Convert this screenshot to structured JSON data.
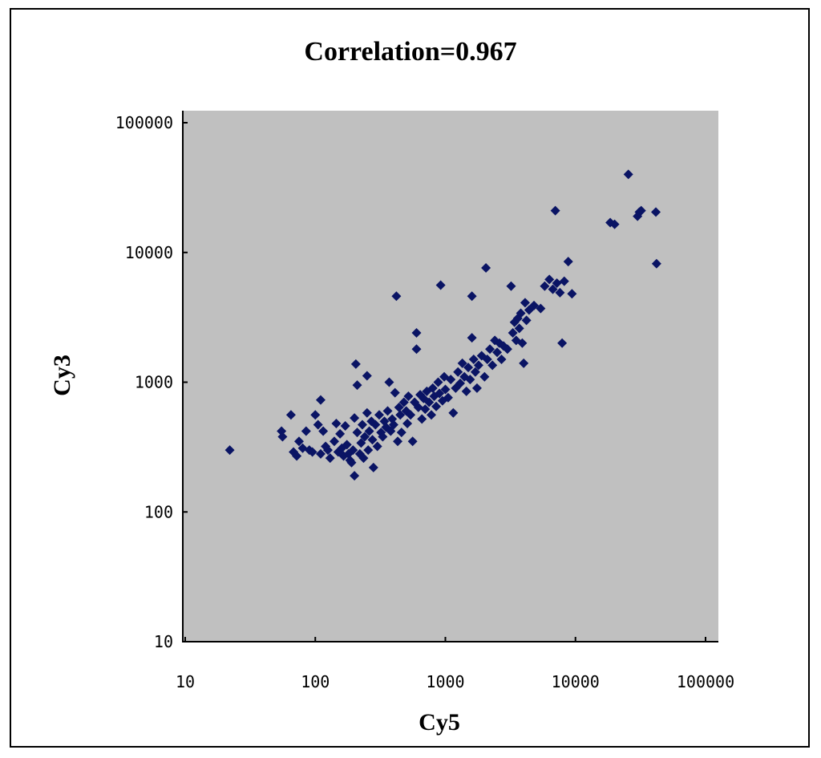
{
  "chart_data": {
    "type": "scatter",
    "title": "Correlation=0.967",
    "xlabel": "Cy5",
    "ylabel": "Cy3",
    "xscale": "log",
    "yscale": "log",
    "xlim": [
      10,
      100000
    ],
    "ylim": [
      10,
      100000
    ],
    "xticks": [
      "10",
      "100",
      "1000",
      "10000",
      "100000"
    ],
    "yticks": [
      "10",
      "100",
      "1000",
      "10000",
      "100000"
    ],
    "grid": false,
    "legend": "none",
    "colors": {
      "marker": "#0a1464",
      "plot_background": "#c0c0c0",
      "frame": "#000000"
    },
    "marker": "diamond",
    "points": [
      [
        22,
        300
      ],
      [
        55,
        420
      ],
      [
        56,
        380
      ],
      [
        65,
        560
      ],
      [
        68,
        290
      ],
      [
        72,
        270
      ],
      [
        75,
        350
      ],
      [
        80,
        310
      ],
      [
        85,
        420
      ],
      [
        90,
        300
      ],
      [
        95,
        290
      ],
      [
        100,
        560
      ],
      [
        105,
        470
      ],
      [
        110,
        730
      ],
      [
        110,
        280
      ],
      [
        115,
        420
      ],
      [
        120,
        320
      ],
      [
        125,
        300
      ],
      [
        130,
        260
      ],
      [
        140,
        350
      ],
      [
        145,
        480
      ],
      [
        150,
        290
      ],
      [
        155,
        400
      ],
      [
        160,
        310
      ],
      [
        165,
        270
      ],
      [
        170,
        460
      ],
      [
        175,
        330
      ],
      [
        180,
        280
      ],
      [
        185,
        250
      ],
      [
        190,
        240
      ],
      [
        195,
        300
      ],
      [
        200,
        530
      ],
      [
        200,
        190
      ],
      [
        205,
        1380
      ],
      [
        210,
        950
      ],
      [
        210,
        410
      ],
      [
        220,
        280
      ],
      [
        225,
        340
      ],
      [
        230,
        470
      ],
      [
        235,
        260
      ],
      [
        240,
        380
      ],
      [
        250,
        1120
      ],
      [
        250,
        580
      ],
      [
        255,
        300
      ],
      [
        260,
        420
      ],
      [
        270,
        500
      ],
      [
        275,
        360
      ],
      [
        280,
        220
      ],
      [
        290,
        470
      ],
      [
        300,
        320
      ],
      [
        310,
        560
      ],
      [
        320,
        410
      ],
      [
        330,
        380
      ],
      [
        340,
        500
      ],
      [
        350,
        450
      ],
      [
        360,
        600
      ],
      [
        370,
        1000
      ],
      [
        380,
        420
      ],
      [
        390,
        520
      ],
      [
        400,
        470
      ],
      [
        410,
        830
      ],
      [
        420,
        4600
      ],
      [
        430,
        350
      ],
      [
        440,
        640
      ],
      [
        450,
        560
      ],
      [
        460,
        410
      ],
      [
        480,
        700
      ],
      [
        500,
        600
      ],
      [
        510,
        480
      ],
      [
        520,
        780
      ],
      [
        540,
        560
      ],
      [
        560,
        350
      ],
      [
        580,
        700
      ],
      [
        600,
        2400
      ],
      [
        600,
        1800
      ],
      [
        620,
        640
      ],
      [
        640,
        800
      ],
      [
        660,
        520
      ],
      [
        680,
        750
      ],
      [
        700,
        620
      ],
      [
        720,
        850
      ],
      [
        750,
        700
      ],
      [
        780,
        560
      ],
      [
        800,
        900
      ],
      [
        820,
        780
      ],
      [
        850,
        650
      ],
      [
        880,
        1000
      ],
      [
        900,
        820
      ],
      [
        920,
        5600
      ],
      [
        950,
        720
      ],
      [
        980,
        1100
      ],
      [
        1000,
        880
      ],
      [
        1050,
        760
      ],
      [
        1100,
        1050
      ],
      [
        1150,
        580
      ],
      [
        1200,
        900
      ],
      [
        1250,
        1200
      ],
      [
        1300,
        980
      ],
      [
        1350,
        1400
      ],
      [
        1400,
        1100
      ],
      [
        1450,
        850
      ],
      [
        1500,
        1300
      ],
      [
        1550,
        1050
      ],
      [
        1600,
        4600
      ],
      [
        1600,
        2200
      ],
      [
        1650,
        1500
      ],
      [
        1700,
        1200
      ],
      [
        1750,
        900
      ],
      [
        1800,
        1350
      ],
      [
        1900,
        1600
      ],
      [
        2000,
        1100
      ],
      [
        2050,
        7600
      ],
      [
        2100,
        1500
      ],
      [
        2200,
        1800
      ],
      [
        2300,
        1350
      ],
      [
        2400,
        2100
      ],
      [
        2500,
        1700
      ],
      [
        2600,
        2000
      ],
      [
        2700,
        1500
      ],
      [
        2800,
        1900
      ],
      [
        3000,
        1800
      ],
      [
        3200,
        5500
      ],
      [
        3300,
        2400
      ],
      [
        3400,
        2900
      ],
      [
        3500,
        2100
      ],
      [
        3600,
        3100
      ],
      [
        3700,
        2600
      ],
      [
        3800,
        3400
      ],
      [
        3900,
        2000
      ],
      [
        4000,
        1400
      ],
      [
        4100,
        4100
      ],
      [
        4200,
        3000
      ],
      [
        4400,
        3600
      ],
      [
        4800,
        3900
      ],
      [
        5400,
        3700
      ],
      [
        5800,
        5500
      ],
      [
        6300,
        6200
      ],
      [
        6700,
        5200
      ],
      [
        7000,
        21000
      ],
      [
        7200,
        5800
      ],
      [
        7600,
        4900
      ],
      [
        7900,
        2000
      ],
      [
        8200,
        6000
      ],
      [
        8800,
        8500
      ],
      [
        9400,
        4800
      ],
      [
        18500,
        17000
      ],
      [
        20000,
        16500
      ],
      [
        25500,
        40000
      ],
      [
        30000,
        19000
      ],
      [
        31000,
        20500
      ],
      [
        32000,
        21000
      ],
      [
        41500,
        20500
      ],
      [
        42000,
        8200
      ]
    ]
  }
}
